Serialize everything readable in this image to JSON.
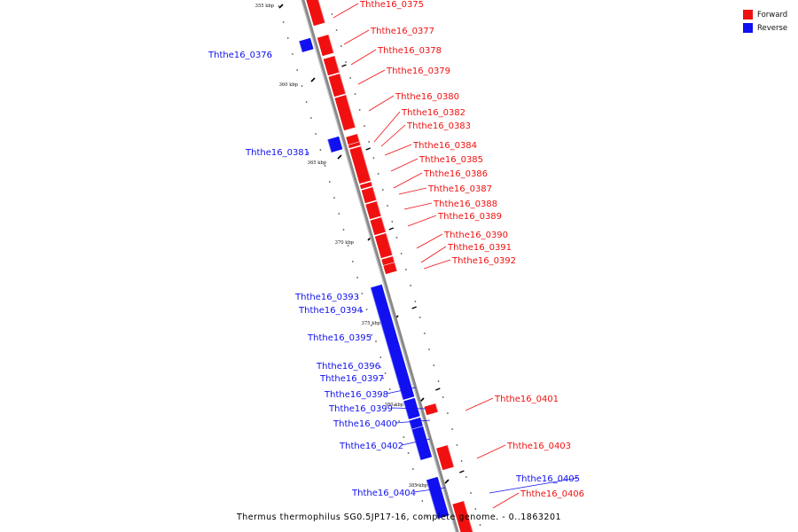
{
  "legend": [
    {
      "label": "Forward",
      "color": "#f01010"
    },
    {
      "label": "Reverse",
      "color": "#1010f0"
    }
  ],
  "colors": {
    "forward": "#f01010",
    "reverse": "#1010f0",
    "backbone": "#888888"
  },
  "caption": "Thermus thermophilus SG0.5JP17-16, complete genome. - 0..1863201",
  "axis_ticks": [
    "355 kbp",
    "360 kbp",
    "365 kbp",
    "370 kbp",
    "375 kbp",
    "380 kbp",
    "385 kbp"
  ],
  "genes": [
    {
      "label": "Ththe16_0375",
      "strand": "forward"
    },
    {
      "label": "Ththe16_0376",
      "strand": "reverse"
    },
    {
      "label": "Ththe16_0377",
      "strand": "forward"
    },
    {
      "label": "Ththe16_0378",
      "strand": "forward"
    },
    {
      "label": "Ththe16_0379",
      "strand": "forward"
    },
    {
      "label": "Ththe16_0380",
      "strand": "forward"
    },
    {
      "label": "Ththe16_0381",
      "strand": "reverse"
    },
    {
      "label": "Ththe16_0382",
      "strand": "forward"
    },
    {
      "label": "Ththe16_0383",
      "strand": "forward"
    },
    {
      "label": "Ththe16_0384",
      "strand": "forward"
    },
    {
      "label": "Ththe16_0385",
      "strand": "forward"
    },
    {
      "label": "Ththe16_0386",
      "strand": "forward"
    },
    {
      "label": "Ththe16_0387",
      "strand": "forward"
    },
    {
      "label": "Ththe16_0388",
      "strand": "forward"
    },
    {
      "label": "Ththe16_0389",
      "strand": "forward"
    },
    {
      "label": "Ththe16_0390",
      "strand": "forward"
    },
    {
      "label": "Ththe16_0391",
      "strand": "forward"
    },
    {
      "label": "Ththe16_0392",
      "strand": "forward"
    },
    {
      "label": "Ththe16_0393",
      "strand": "reverse"
    },
    {
      "label": "Ththe16_0394",
      "strand": "reverse"
    },
    {
      "label": "Ththe16_0395",
      "strand": "reverse"
    },
    {
      "label": "Ththe16_0396",
      "strand": "reverse"
    },
    {
      "label": "Ththe16_0397",
      "strand": "reverse"
    },
    {
      "label": "Ththe16_0398",
      "strand": "reverse"
    },
    {
      "label": "Ththe16_0399",
      "strand": "reverse"
    },
    {
      "label": "Ththe16_0400",
      "strand": "reverse"
    },
    {
      "label": "Ththe16_0401",
      "strand": "forward"
    },
    {
      "label": "Ththe16_0402",
      "strand": "reverse"
    },
    {
      "label": "Ththe16_0403",
      "strand": "forward"
    },
    {
      "label": "Ththe16_0404",
      "strand": "reverse"
    },
    {
      "label": "Ththe16_0405",
      "strand": "reverse"
    },
    {
      "label": "Ththe16_0406",
      "strand": "forward"
    }
  ]
}
